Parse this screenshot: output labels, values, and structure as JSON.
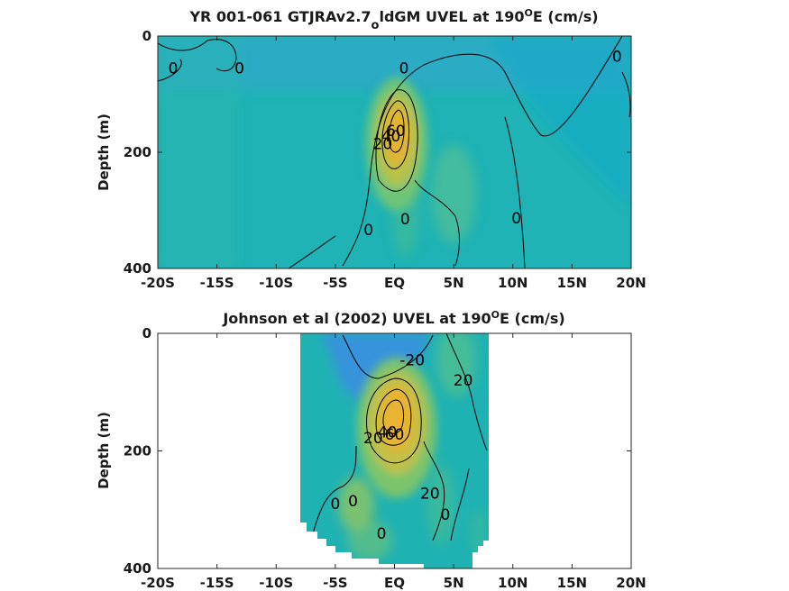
{
  "chart_data": [
    {
      "type": "heatmap",
      "title": "YR 001-061 GTJRAv2.7_oldGM UVEL at 190°E (cm/s)",
      "title_parts": {
        "a": "YR 001-061 GTJRAv2.7",
        "sub": "o",
        "b": "ldGM UVEL at 190",
        "sup": "O",
        "c": "E (cm/s)"
      },
      "ylabel": "Depth (m)",
      "xlabel": "",
      "xlim": [
        -20,
        20
      ],
      "ylim": [
        400,
        0
      ],
      "xticks": [
        -20,
        -15,
        -10,
        -5,
        0,
        5,
        10,
        15,
        20
      ],
      "xtick_labels": [
        "-20S",
        "-15S",
        "-10S",
        "-5S",
        "EQ",
        "5N",
        "10N",
        "15N",
        "20N"
      ],
      "yticks": [
        0,
        200,
        400
      ],
      "ytick_labels": [
        "0",
        "200",
        "400"
      ],
      "data_x_range": [
        -20,
        20
      ],
      "contour_interval": 20,
      "core": {
        "lat": 0.1,
        "depth": 160,
        "max_speed": 75
      },
      "contour_labels": [
        {
          "text": "0",
          "lat": -18.7,
          "depth": 55
        },
        {
          "text": "0",
          "lat": -13.1,
          "depth": 55
        },
        {
          "text": "0",
          "lat": 0.8,
          "depth": 55
        },
        {
          "text": "0",
          "lat": 18.8,
          "depth": 35
        },
        {
          "text": "20",
          "lat": -1.0,
          "depth": 185
        },
        {
          "text": "40",
          "lat": -0.3,
          "depth": 172
        },
        {
          "text": "60",
          "lat": 0.1,
          "depth": 163
        },
        {
          "text": "0",
          "lat": 0.9,
          "depth": 315
        },
        {
          "text": "0",
          "lat": -2.2,
          "depth": 333
        },
        {
          "text": "0",
          "lat": 10.3,
          "depth": 313
        }
      ]
    },
    {
      "type": "heatmap",
      "title": "Johnson et al (2002) UVEL at 190°E (cm/s)",
      "title_parts": {
        "a": "Johnson et al (2002) UVEL at 190",
        "sup": "O",
        "b": "E (cm/s)"
      },
      "ylabel": "Depth (m)",
      "xlabel": "",
      "xlim": [
        -20,
        20
      ],
      "ylim": [
        400,
        0
      ],
      "xticks": [
        -20,
        -15,
        -10,
        -5,
        0,
        5,
        10,
        15,
        20
      ],
      "xtick_labels": [
        "-20S",
        "-15S",
        "-10S",
        "-5S",
        "EQ",
        "5N",
        "10N",
        "15N",
        "20N"
      ],
      "yticks": [
        0,
        200,
        400
      ],
      "ytick_labels": [
        "0",
        "200",
        "400"
      ],
      "data_x_range": [
        -8,
        8
      ],
      "contour_interval": 20,
      "core": {
        "lat": 0.1,
        "depth": 160,
        "max_speed": 80
      },
      "contour_labels": [
        {
          "text": "-20",
          "lat": 1.5,
          "depth": 45
        },
        {
          "text": "20",
          "lat": 5.8,
          "depth": 80
        },
        {
          "text": "20",
          "lat": -1.8,
          "depth": 178
        },
        {
          "text": "40",
          "lat": -0.6,
          "depth": 168
        },
        {
          "text": "60",
          "lat": 0.0,
          "depth": 172
        },
        {
          "text": "20",
          "lat": 3.0,
          "depth": 272
        },
        {
          "text": "0",
          "lat": -5.0,
          "depth": 290
        },
        {
          "text": "0",
          "lat": 4.3,
          "depth": 308
        },
        {
          "text": "0",
          "lat": -3.5,
          "depth": 285
        },
        {
          "text": "0",
          "lat": -1.1,
          "depth": 340
        }
      ]
    }
  ]
}
